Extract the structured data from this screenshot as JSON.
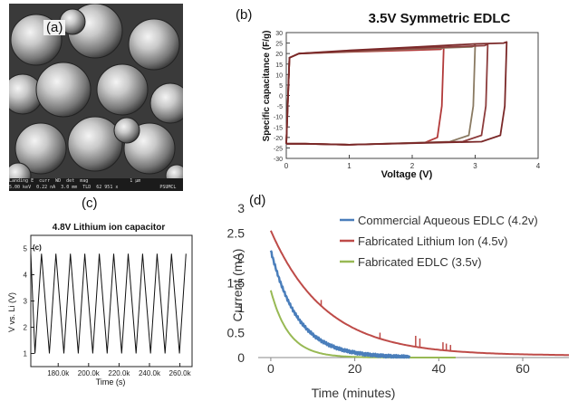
{
  "panel_labels": {
    "a": "(a)",
    "b": "(b)",
    "c": "(c)",
    "d": "(d)",
    "c_inner": "(c)"
  },
  "sem_bar": {
    "fields": [
      "Landing E",
      "curr",
      "WD",
      "det",
      "mag",
      "5.00 keV",
      "0.22 nA",
      "3.0 mm",
      "TLD",
      "62 951 x"
    ],
    "scale": "1 µm",
    "lab": "PSUMCL"
  },
  "chart_data": [
    {
      "id": "b",
      "type": "line",
      "title": "3.5V Symmetric EDLC",
      "xlabel": "Voltage (V)",
      "ylabel": "Specific capacitance (F/g)",
      "xlim": [
        0,
        4
      ],
      "ylim": [
        -30,
        30
      ],
      "xticks": [
        0,
        1,
        2,
        3,
        4
      ],
      "yticks": [
        -30,
        -25,
        -20,
        -15,
        -10,
        -5,
        0,
        5,
        10,
        15,
        20,
        25,
        30
      ],
      "grid": false,
      "series": [
        {
          "color": "#b23a3a",
          "vmax": 2.5,
          "upper": [
            [
              0,
              -23
            ],
            [
              0.05,
              18
            ],
            [
              0.2,
              20
            ],
            [
              1,
              20.8
            ],
            [
              2,
              21.6
            ],
            [
              2.45,
              22
            ],
            [
              2.5,
              23
            ]
          ],
          "lower": [
            [
              2.5,
              23
            ],
            [
              2.47,
              -5
            ],
            [
              2.4,
              -20
            ],
            [
              2.2,
              -22.5
            ],
            [
              1,
              -23.5
            ],
            [
              0.3,
              -23
            ],
            [
              0,
              -23
            ]
          ]
        },
        {
          "color": "#8a7a62",
          "vmax": 3.0,
          "upper": [
            [
              0,
              -23
            ],
            [
              0.05,
              18
            ],
            [
              0.2,
              20
            ],
            [
              1,
              21
            ],
            [
              2,
              22.2
            ],
            [
              2.95,
              23.2
            ],
            [
              3.0,
              24
            ]
          ],
          "lower": [
            [
              3.0,
              24
            ],
            [
              2.97,
              -5
            ],
            [
              2.9,
              -19
            ],
            [
              2.6,
              -22
            ],
            [
              1,
              -23.5
            ],
            [
              0.3,
              -23
            ],
            [
              0,
              -23
            ]
          ]
        },
        {
          "color": "#8c3c3c",
          "vmax": 3.2,
          "upper": [
            [
              0,
              -23
            ],
            [
              0.05,
              18
            ],
            [
              0.2,
              20
            ],
            [
              1,
              21.2
            ],
            [
              2,
              22.5
            ],
            [
              3.15,
              23.8
            ],
            [
              3.2,
              24.5
            ]
          ],
          "lower": [
            [
              3.2,
              24.5
            ],
            [
              3.17,
              -5
            ],
            [
              3.1,
              -19
            ],
            [
              2.8,
              -22
            ],
            [
              1,
              -23.5
            ],
            [
              0.3,
              -23
            ],
            [
              0,
              -23
            ]
          ]
        },
        {
          "color": "#7a2828",
          "vmax": 3.5,
          "upper": [
            [
              0,
              -23
            ],
            [
              0.05,
              18
            ],
            [
              0.2,
              20
            ],
            [
              1,
              21.5
            ],
            [
              2,
              23
            ],
            [
              3,
              24.6
            ],
            [
              3.45,
              25
            ],
            [
              3.5,
              25.5
            ]
          ],
          "lower": [
            [
              3.5,
              25.5
            ],
            [
              3.47,
              -5
            ],
            [
              3.4,
              -19
            ],
            [
              3.1,
              -22
            ],
            [
              1,
              -23.5
            ],
            [
              0.3,
              -23
            ],
            [
              0,
              -23
            ]
          ]
        }
      ]
    },
    {
      "id": "c",
      "type": "line",
      "title": "4.8V Lithium ion capacitor",
      "xlabel": "Time (s)",
      "ylabel": "V vs. Li (V)",
      "xlim": [
        162000,
        268000
      ],
      "ylim": [
        0.5,
        5.5
      ],
      "xticks": [
        "180.0k",
        "200.0k",
        "220.0k",
        "240.0k",
        "260.0k"
      ],
      "xtick_values": [
        180000,
        200000,
        220000,
        240000,
        260000
      ],
      "yticks": [
        1,
        2,
        3,
        4,
        5
      ],
      "cycle_period_s": 9500,
      "first_peak_s": 169000,
      "vmax": 4.8,
      "vmin": 1.0
    },
    {
      "id": "d",
      "type": "line",
      "xlabel": "Time (minutes)",
      "ylabel": "Current (mA)",
      "xlim": [
        -3,
        71
      ],
      "ylim": [
        0,
        3
      ],
      "xticks": [
        0,
        20,
        40,
        60
      ],
      "yticks": [
        0,
        0.5,
        1,
        1.5,
        2,
        2.5,
        3
      ],
      "grid": false,
      "legend": "right",
      "series": [
        {
          "name": "Commercial Aqueous EDLC (4.2v)",
          "color": "#4a7ebb",
          "i0": 2.15,
          "tau": 6.5,
          "tend": 33
        },
        {
          "name": "Fabricated Lithium Ion (4.5v)",
          "color": "#be4b48",
          "i0": 2.55,
          "tau": 13,
          "floor": 0.04,
          "tend": 71
        },
        {
          "name": "Fabricated EDLC (3.5v)",
          "color": "#98b954",
          "i0": 1.35,
          "tau": 4.3,
          "tend": 44
        }
      ],
      "spikes": [
        {
          "series": 1,
          "x": 12,
          "h": 0.12
        },
        {
          "series": 1,
          "x": 26,
          "h": 0.12
        },
        {
          "series": 1,
          "x": 34.5,
          "h": 0.22
        },
        {
          "series": 1,
          "x": 35.5,
          "h": 0.18
        },
        {
          "series": 1,
          "x": 41,
          "h": 0.16
        },
        {
          "series": 1,
          "x": 41.8,
          "h": 0.14
        },
        {
          "series": 1,
          "x": 42.8,
          "h": 0.12
        }
      ]
    }
  ]
}
